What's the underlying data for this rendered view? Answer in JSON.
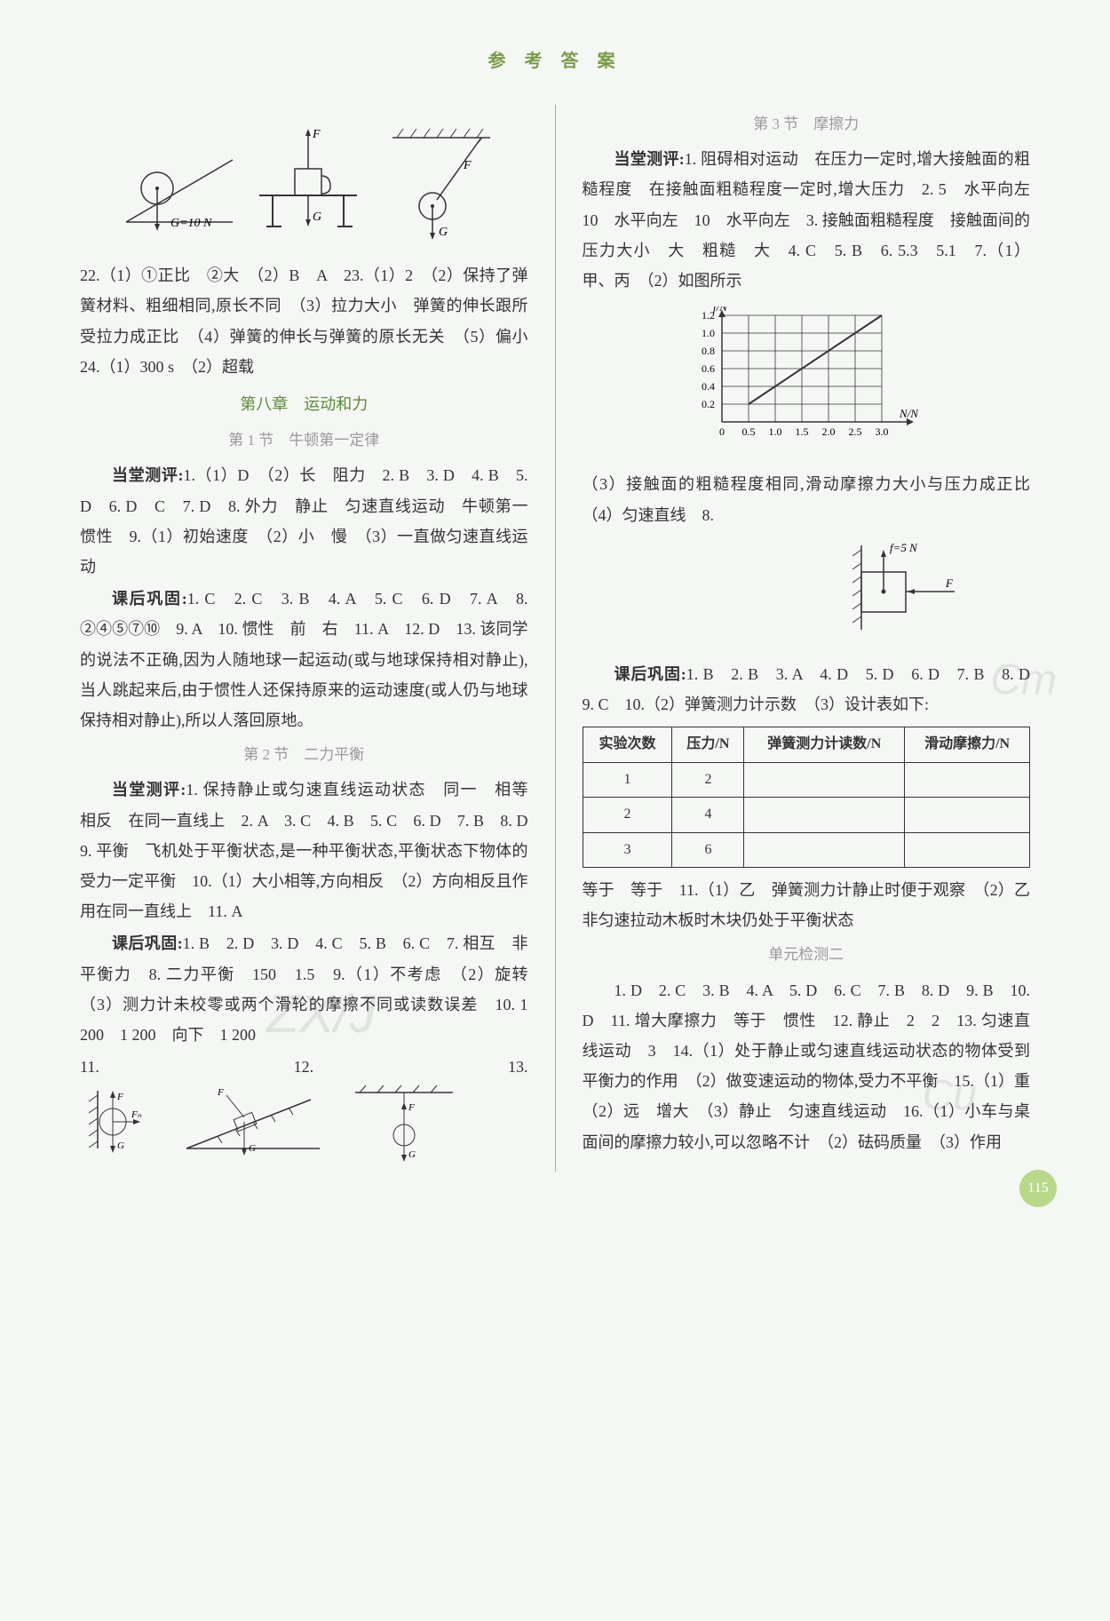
{
  "header": "参 考 答 案",
  "pageNumber": "115",
  "left": {
    "diagram1_labels": {
      "G10N": "G=10 N",
      "F": "F",
      "G": "G"
    },
    "p22": "22.（1）①正比　②大　（2）B　A　23.（1）2　（2）保持了弹簧材料、粗细相同,原长不同　（3）拉力大小　弹簧的伸长跟所受拉力成正比　（4）弹簧的伸长与弹簧的原长无关　（5）偏小　24.（1）300 s　（2）超载",
    "chapter8": "第八章　运动和力",
    "sec1_title": "第 1 节　牛顿第一定律",
    "sec1_dangtang_label": "当堂测评:",
    "sec1_dangtang": "1.（1）D　（2）长　阻力　2. B　3. D　4. B　5. D　6. D　C　7. D　8. 外力　静止　匀速直线运动　牛顿第一　惯性　9.（1）初始速度　（2）小　慢　（3）一直做匀速直线运动",
    "sec1_kehou_label": "课后巩固:",
    "sec1_kehou": "1. C　2. C　3. B　4. A　5. C　6. D　7. A　8. ②④⑤⑦⑩　9. A　10. 惯性　前　右　11. A　12. D　13. 该同学的说法不正确,因为人随地球一起运动(或与地球保持相对静止),当人跳起来后,由于惯性人还保持原来的运动速度(或人仍与地球保持相对静止),所以人落回原地。",
    "sec2_title": "第 2 节　二力平衡",
    "sec2_dangtang_label": "当堂测评:",
    "sec2_dangtang": "1. 保持静止或匀速直线运动状态　同一　相等　相反　在同一直线上　2. A　3. C　4. B　5. C　6. D　7. B　8. D　9. 平衡　飞机处于平衡状态,是一种平衡状态,平衡状态下物体的受力一定平衡　10.（1）大小相等,方向相反　（2）方向相反且作用在同一直线上　11. A",
    "sec2_kehou_label": "课后巩固:",
    "sec2_kehou": "1. B　2. D　3. D　4. C　5. B　6. C　7. 相互　非平衡力　8. 二力平衡　150　1.5　9.（1）不考虑　（2）旋转　（3）测力计未校零或两个滑轮的摩擦不同或读数误差　10. 1 200　1 200　向下　1 200",
    "bottom11_13": "11.　　　12.　　　13."
  },
  "right": {
    "sec3_title": "第 3 节　摩擦力",
    "sec3_dangtang_label": "当堂测评:",
    "sec3_dangtang": "1. 阻碍相对运动　在压力一定时,增大接触面的粗糙程度　在接触面粗糙程度一定时,增大压力　2. 5　水平向左　10　水平向左　10　水平向左　3. 接触面粗糙程度　接触面间的压力大小　大　粗糙　大　4. C　5. B　6. 5.3　5.1　7.（1）甲、丙　（2）如图所示",
    "chart": {
      "type": "line",
      "xlabel": "N/N",
      "ylabel": "f/N",
      "xlim": [
        0,
        3.0
      ],
      "ylim": [
        0.2,
        1.2
      ],
      "xticks": [
        "0",
        "0.5",
        "1.0",
        "1.5",
        "2.0",
        "2.5",
        "3.0"
      ],
      "yticks": [
        "0.2",
        "0.4",
        "0.6",
        "0.8",
        "1.0",
        "1.2"
      ],
      "points": [
        [
          0.5,
          0.2
        ],
        [
          3.0,
          1.2
        ]
      ],
      "grid_color": "#333",
      "line_color": "#333"
    },
    "sec3_cont": "（3）接触面的粗糙程度相同,滑动摩擦力大小与压力成正比　（4）匀速直线　8.",
    "diag8_labels": {
      "f5N": "f=5 N",
      "F": "F"
    },
    "sec3_kehou_label": "课后巩固:",
    "sec3_kehou": "1. B　2. B　3. A　4. D　5. D　6. D　7. B　8. D　9. C　10.（2）弹簧测力计示数　（3）设计表如下:",
    "table": {
      "columns": [
        "实验次数",
        "压力/N",
        "弹簧测力计读数/N",
        "滑动摩擦力/N"
      ],
      "rows": [
        [
          "1",
          "2",
          "",
          ""
        ],
        [
          "2",
          "4",
          "",
          ""
        ],
        [
          "3",
          "6",
          "",
          ""
        ]
      ]
    },
    "sec3_cont2": "等于　等于　11.（1）乙　弹簧测力计静止时便于观察　（2）乙　非匀速拉动木板时木块仍处于平衡状态",
    "unit2_title": "单元检测二",
    "unit2_body": "1. D　2. C　3. B　4. A　5. D　6. C　7. B　8. D　9. B　10. D　11. 增大摩擦力　等于　惯性　12. 静止　2　2　13. 匀速直线运动　3　14.（1）处于静止或匀速直线运动状态的物体受到平衡力的作用　（2）做变速运动的物体,受力不平衡　15.（1）重　（2）远　增大　（3）静止　匀速直线运动　16.（1）小车与桌面间的摩擦力较小,可以忽略不计　（2）砝码质量　（3）作用"
  }
}
